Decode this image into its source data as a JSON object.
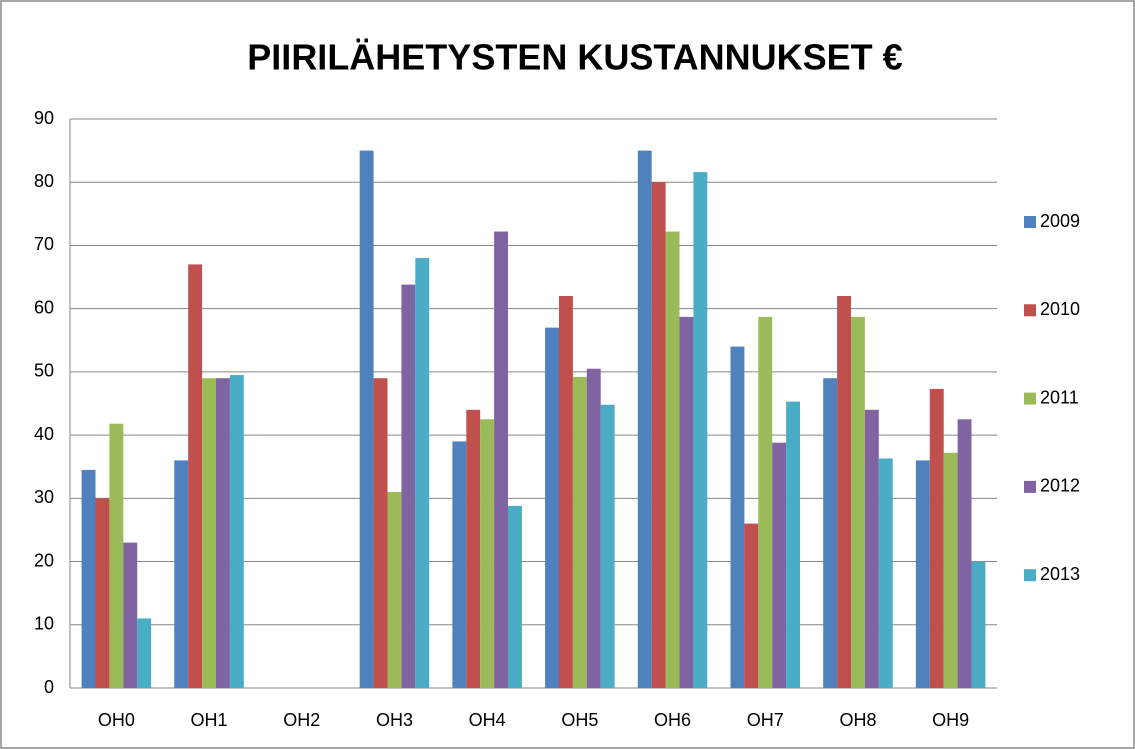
{
  "chart_data": {
    "type": "bar",
    "title": "PIIRILÄHETYSTEN KUSTANNUKSET €",
    "categories": [
      "OH0",
      "OH1",
      "OH2",
      "OH3",
      "OH4",
      "OH5",
      "OH6",
      "OH7",
      "OH8",
      "OH9"
    ],
    "series": [
      {
        "name": "2009",
        "color": "#4f81bd",
        "values": [
          34.5,
          36,
          0,
          85,
          39,
          57,
          85,
          54,
          49,
          36
        ]
      },
      {
        "name": "2010",
        "color": "#c0504d",
        "values": [
          30,
          67,
          0,
          49,
          44,
          62,
          80,
          26,
          62,
          47.3
        ]
      },
      {
        "name": "2011",
        "color": "#9bbb59",
        "values": [
          41.8,
          49,
          0,
          31,
          42.5,
          49.2,
          72.2,
          58.7,
          58.7,
          37.2
        ]
      },
      {
        "name": "2012",
        "color": "#8064a2",
        "values": [
          23,
          49,
          0,
          63.8,
          72.2,
          50.5,
          58.7,
          38.8,
          44,
          42.5
        ]
      },
      {
        "name": "2013",
        "color": "#4bacc6",
        "values": [
          11,
          49.5,
          0,
          68,
          28.8,
          44.8,
          81.6,
          45.3,
          36.3,
          20
        ]
      }
    ],
    "ylim": [
      0,
      90
    ],
    "yticks": [
      0,
      10,
      20,
      30,
      40,
      50,
      60,
      70,
      80,
      90
    ],
    "grid": true,
    "legend": "right"
  }
}
